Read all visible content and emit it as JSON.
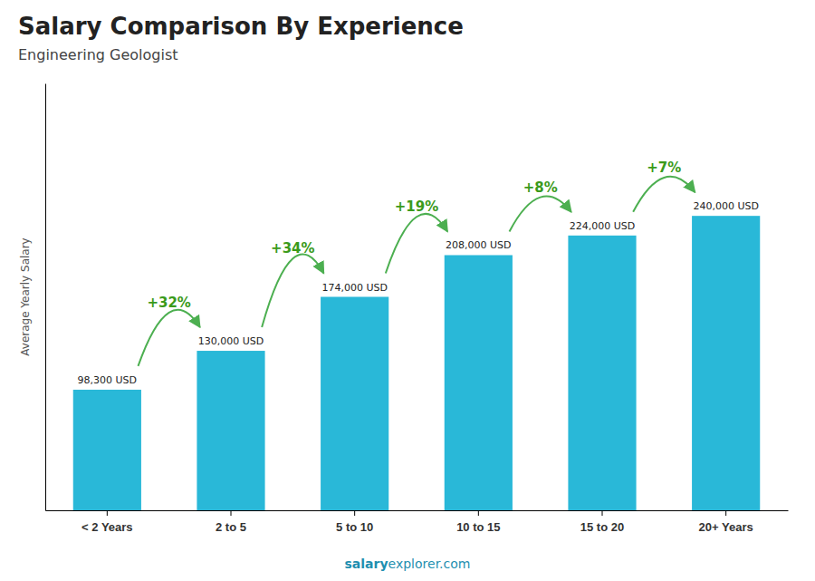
{
  "chart_data": {
    "type": "bar",
    "title": "Salary Comparison By Experience",
    "subtitle": "Engineering Geologist",
    "categories": [
      "< 2 Years",
      "2 to 5",
      "5 to 10",
      "10 to 15",
      "15 to 20",
      "20+ Years"
    ],
    "values": [
      98300,
      130000,
      174000,
      208000,
      224000,
      240000
    ],
    "value_labels": [
      "98,300 USD",
      "130,000 USD",
      "174,000 USD",
      "208,000 USD",
      "224,000 USD",
      "240,000 USD"
    ],
    "data_labels": true,
    "color": "#29b8d8",
    "ylabel": "Average Yearly Salary",
    "ylim": [
      0,
      348000
    ],
    "tick_labels": "x",
    "grid": false,
    "annotations": [
      "+32%",
      "+34%",
      "+19%",
      "+8%",
      "+7%"
    ],
    "footer": [
      "salary",
      "explorer.com"
    ]
  }
}
